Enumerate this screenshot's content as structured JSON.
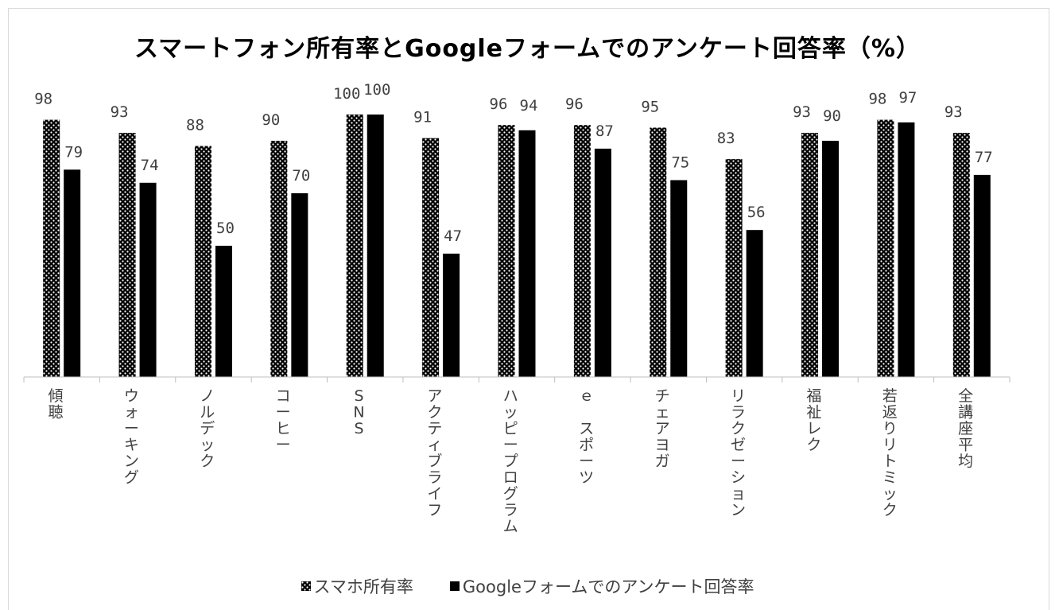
{
  "chart_data": {
    "type": "bar",
    "title": "スマートフォン所有率とGoogleフォームでのアンケート回答率（%）",
    "categories": [
      "傾聴",
      "ウォーキング",
      "ノルデック",
      "コーヒー",
      "SNS",
      "アクティブライフ",
      "ハッピープログラム",
      "ｅ スポーツ",
      "チェアヨガ",
      "リラクゼーション",
      "福祉レク",
      "若返りリトミック",
      "全講座平均"
    ],
    "series": [
      {
        "name": "スマホ所有率",
        "values": [
          98,
          93,
          88,
          90,
          100,
          91,
          96,
          96,
          95,
          83,
          93,
          98,
          93
        ],
        "pattern": "dotted"
      },
      {
        "name": "Googleフォームでのアンケート回答率",
        "values": [
          79,
          74,
          50,
          70,
          100,
          47,
          94,
          87,
          75,
          56,
          90,
          97,
          77
        ],
        "pattern": "solid"
      }
    ],
    "data_labels": {
      "series0": [
        "98",
        "93",
        "88",
        "90",
        "100",
        "91",
        "96",
        "96",
        "95",
        "83",
        "93",
        "98",
        "93"
      ],
      "series1": [
        "79",
        "74",
        "50",
        "70",
        "100",
        "47",
        "94",
        "87",
        "75",
        "56",
        "90",
        "97",
        "77"
      ]
    },
    "ylim": [
      0,
      100
    ],
    "grid": false,
    "legend_position": "bottom",
    "colors": {
      "bar_fill": "#000000",
      "dot": "#ffffff",
      "axis": "#bfbfbf",
      "text": "#404040"
    }
  }
}
